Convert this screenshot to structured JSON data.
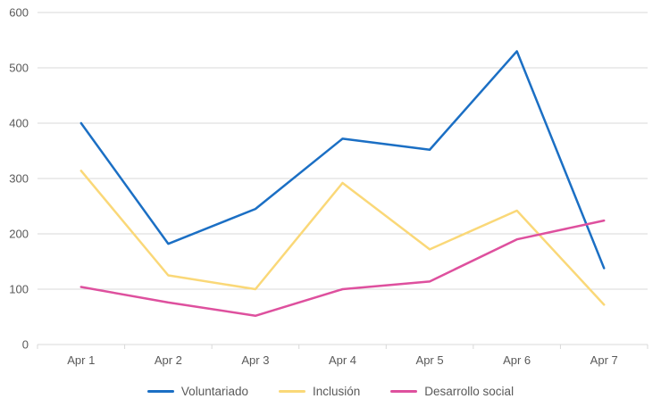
{
  "chart_data": {
    "type": "line",
    "title": "",
    "categories": [
      "Apr 1",
      "Apr 2",
      "Apr 3",
      "Apr 4",
      "Apr 5",
      "Apr 6",
      "Apr 7"
    ],
    "series": [
      {
        "name": "Voluntariado",
        "color": "#1b6fc4",
        "values": [
          400,
          182,
          245,
          372,
          352,
          530,
          138
        ]
      },
      {
        "name": "Inclusión",
        "color": "#fad878",
        "values": [
          314,
          125,
          100,
          292,
          172,
          242,
          72
        ]
      },
      {
        "name": "Desarrollo social",
        "color": "#de509e",
        "values": [
          104,
          76,
          52,
          100,
          114,
          190,
          224
        ]
      }
    ],
    "ylim": [
      0,
      600
    ],
    "ytick_step": 100,
    "ytick_labels": [
      "0",
      "100",
      "200",
      "300",
      "400",
      "500",
      "600"
    ],
    "grid": true,
    "legend_position": "bottom",
    "colors": {
      "grid": "#d9d9d9",
      "axis_line": "#d9d9d9",
      "axis_labels": "#595959",
      "background": "#ffffff"
    }
  }
}
